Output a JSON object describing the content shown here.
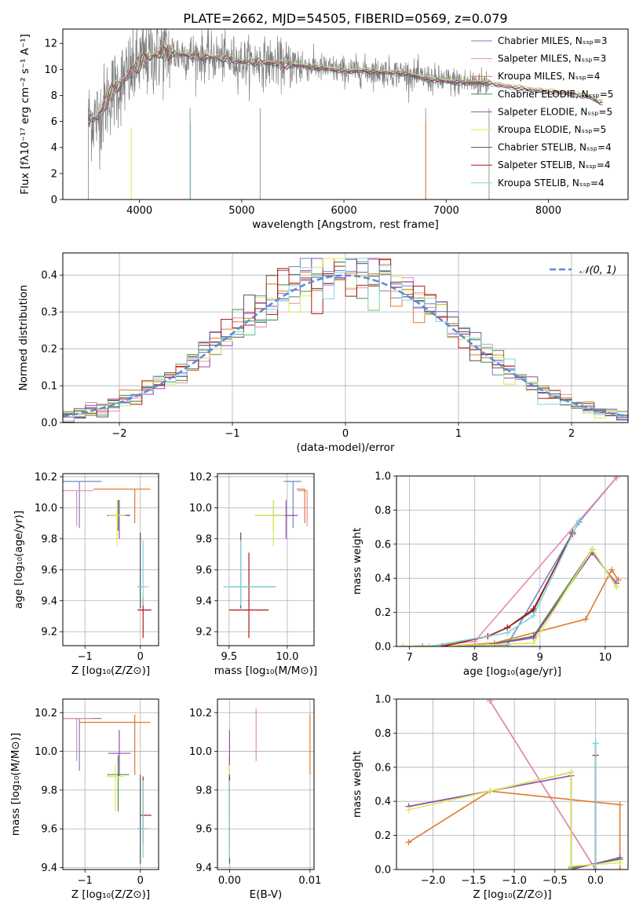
{
  "figure": {
    "title": "PLATE=2662, MJD=54505, FIBERID=0569, z=0.079"
  },
  "colors": {
    "Chabrier MILES": "#6f88c4",
    "Salpeter MILES": "#e88ab0",
    "Kroupa MILES": "#e07a2e",
    "Chabrier ELODIE": "#4c8a4c",
    "Salpeter ELODIE": "#9a48b0",
    "Kroupa ELODIE": "#d8ee52",
    "Chabrier STELIB": "#555555",
    "Salpeter STELIB": "#b01818",
    "Kroupa STELIB": "#7fd6e0",
    "data": "#808080",
    "gaussian": "#5b8bd6"
  },
  "chart_data": [
    {
      "id": "spectrum",
      "type": "line",
      "xlabel": "wavelength [Angstrom, rest frame]",
      "ylabel": "Flux [fλ10⁻¹⁷ erg cm⁻² s⁻¹ A⁻¹]",
      "xlim": [
        3250,
        8780
      ],
      "ylim": [
        0,
        13.1
      ],
      "xticks": [
        4000,
        5000,
        6000,
        7000,
        8000
      ],
      "yticks": [
        0,
        2,
        4,
        6,
        8,
        10,
        12
      ],
      "legend_position": "right",
      "legend": [
        "Chabrier MILES, Nₛₛₚ=3",
        "Salpeter MILES, Nₛₛₚ=3",
        "Kroupa MILES, Nₛₛₚ=4",
        "Chabrier ELODIE, Nₛₛₚ=5",
        "Salpeter ELODIE, Nₛₛₚ=5",
        "Kroupa ELODIE, Nₛₛₚ=5",
        "Chabrier STELIB, Nₛₛₚ=4",
        "Salpeter STELIB, Nₛₛₚ=4",
        "Kroupa STELIB, Nₛₛₚ=4"
      ],
      "continuum": [
        [
          3500,
          6.2
        ],
        [
          3600,
          6.3
        ],
        [
          3700,
          8.0
        ],
        [
          3800,
          8.8
        ],
        [
          3900,
          9.6
        ],
        [
          4000,
          10.5
        ],
        [
          4100,
          11.0
        ],
        [
          4200,
          11.3
        ],
        [
          4400,
          11.2
        ],
        [
          4600,
          11.0
        ],
        [
          4800,
          10.9
        ],
        [
          5000,
          10.6
        ],
        [
          5200,
          10.6
        ],
        [
          5400,
          10.4
        ],
        [
          5600,
          10.3
        ],
        [
          5800,
          10.1
        ],
        [
          6000,
          9.9
        ],
        [
          6200,
          9.9
        ],
        [
          6400,
          9.8
        ],
        [
          6600,
          9.7
        ],
        [
          6800,
          9.3
        ],
        [
          7000,
          9.1
        ],
        [
          7200,
          9.0
        ],
        [
          7400,
          9.0
        ],
        [
          7600,
          8.7
        ],
        [
          7800,
          8.5
        ],
        [
          8000,
          8.3
        ],
        [
          8200,
          8.2
        ],
        [
          8400,
          7.9
        ],
        [
          8500,
          7.5
        ]
      ],
      "data_range": [
        3500,
        7420
      ],
      "model_range": [
        3500,
        8530
      ]
    },
    {
      "id": "residuals",
      "type": "step",
      "xlabel": "(data-model)/error",
      "ylabel": "Normed distribution",
      "xlim": [
        -2.5,
        2.5
      ],
      "ylim": [
        0,
        0.46
      ],
      "xticks": [
        -2,
        -1,
        0,
        1,
        2
      ],
      "yticks": [
        0.0,
        0.1,
        0.2,
        0.3,
        0.4
      ],
      "legend": [
        "𝒩(0, 1)"
      ],
      "legend_position": "upper right",
      "bin_width": 0.1
    },
    {
      "id": "age-vs-Z",
      "type": "errorbar",
      "xlabel": "Z [log₁₀(Z/Z⊙)]",
      "ylabel": "age  [log₁₀(age/yr)]",
      "xlim": [
        -1.4,
        0.33
      ],
      "ylim": [
        9.11,
        10.22
      ],
      "xticks": [
        -1,
        0
      ],
      "yticks": [
        9.2,
        9.4,
        9.6,
        9.8,
        10.0,
        10.2
      ],
      "points": [
        {
          "model": "Chabrier MILES",
          "x": -1.1,
          "xerr": [
            0.4,
            0.4
          ],
          "y": 10.17,
          "yerr": [
            0.3,
            0.0
          ]
        },
        {
          "model": "Salpeter MILES",
          "x": -1.15,
          "xerr": [
            0.35,
            0.3
          ],
          "y": 10.11,
          "yerr": [
            0.23,
            0.0
          ]
        },
        {
          "model": "Kroupa MILES",
          "x": -0.1,
          "xerr": [
            0.75,
            0.28
          ],
          "y": 10.12,
          "yerr": [
            0.22,
            0.0
          ]
        },
        {
          "model": "Chabrier ELODIE",
          "x": -0.4,
          "xerr": [
            0.2,
            0.2
          ],
          "y": 9.95,
          "yerr": [
            0.1,
            0.1
          ]
        },
        {
          "model": "Salpeter ELODIE",
          "x": -0.38,
          "xerr": [
            0.2,
            0.2
          ],
          "y": 9.95,
          "yerr": [
            0.15,
            0.1
          ]
        },
        {
          "model": "Kroupa ELODIE",
          "x": -0.42,
          "xerr": [
            0.15,
            0.15
          ],
          "y": 9.95,
          "yerr": [
            0.2,
            0.1
          ]
        },
        {
          "model": "Chabrier STELIB",
          "x": 0.0,
          "xerr": [
            0.05,
            0.05
          ],
          "y": 9.49,
          "yerr": [
            0.14,
            0.35
          ]
        },
        {
          "model": "Salpeter STELIB",
          "x": 0.05,
          "xerr": [
            0.1,
            0.15
          ],
          "y": 9.34,
          "yerr": [
            0.18,
            0.08
          ]
        },
        {
          "model": "Kroupa STELIB",
          "x": 0.05,
          "xerr": [
            0.1,
            0.1
          ],
          "y": 9.49,
          "yerr": [
            0.12,
            0.3
          ]
        }
      ]
    },
    {
      "id": "age-vs-mass",
      "type": "errorbar",
      "xlabel": "mass [log₁₀(M/M⊙)]",
      "ylabel": "",
      "xlim": [
        9.4,
        10.23
      ],
      "ylim": [
        9.11,
        10.22
      ],
      "xticks": [
        9.5,
        10.0
      ],
      "yticks": [
        9.2,
        9.4,
        9.6,
        9.8,
        10.0,
        10.2
      ],
      "points": [
        {
          "model": "Chabrier MILES",
          "x": 10.05,
          "xerr": [
            0.08,
            0.07
          ],
          "y": 10.17,
          "yerr": [
            0.3,
            0.0
          ]
        },
        {
          "model": "Salpeter MILES",
          "x": 10.17,
          "xerr": [
            0.08,
            0.0
          ],
          "y": 10.11,
          "yerr": [
            0.23,
            0.0
          ]
        },
        {
          "model": "Kroupa MILES",
          "x": 10.15,
          "xerr": [
            0.07,
            0.0
          ],
          "y": 10.12,
          "yerr": [
            0.22,
            0.0
          ]
        },
        {
          "model": "Chabrier ELODIE",
          "x": 9.88,
          "xerr": [
            0.16,
            0.1
          ],
          "y": 9.95,
          "yerr": [
            0.1,
            0.1
          ]
        },
        {
          "model": "Salpeter ELODIE",
          "x": 9.99,
          "xerr": [
            0.12,
            0.1
          ],
          "y": 9.95,
          "yerr": [
            0.15,
            0.1
          ]
        },
        {
          "model": "Kroupa ELODIE",
          "x": 9.88,
          "xerr": [
            0.16,
            0.1
          ],
          "y": 9.95,
          "yerr": [
            0.2,
            0.1
          ]
        },
        {
          "model": "Chabrier STELIB",
          "x": 9.6,
          "xerr": [
            0.1,
            0.3
          ],
          "y": 9.49,
          "yerr": [
            0.14,
            0.35
          ]
        },
        {
          "model": "Salpeter STELIB",
          "x": 9.67,
          "xerr": [
            0.17,
            0.17
          ],
          "y": 9.34,
          "yerr": [
            0.18,
            0.37
          ]
        },
        {
          "model": "Kroupa STELIB",
          "x": 9.6,
          "xerr": [
            0.15,
            0.3
          ],
          "y": 9.49,
          "yerr": [
            0.12,
            0.3
          ]
        }
      ]
    },
    {
      "id": "weight-vs-age",
      "type": "line",
      "xlabel": "age  [log₁₀(age/yr)]",
      "ylabel": "mass weight",
      "xlim": [
        6.8,
        10.35
      ],
      "ylim": [
        0,
        1
      ],
      "xticks": [
        7,
        8,
        9,
        10
      ],
      "yticks": [
        0.0,
        0.2,
        0.4,
        0.6,
        0.8,
        1.0
      ],
      "series": [
        {
          "model": "Chabrier MILES",
          "x": [
            7.2,
            8.5,
            9.6,
            10.17
          ],
          "y": [
            0.0,
            0.01,
            0.73,
            0.99
          ]
        },
        {
          "model": "Salpeter MILES",
          "x": [
            7.3,
            8.0,
            10.17
          ],
          "y": [
            0.0,
            0.03,
            0.99
          ]
        },
        {
          "model": "Kroupa MILES",
          "x": [
            7.5,
            8.3,
            9.7,
            10.1,
            10.2
          ],
          "y": [
            0.0,
            0.02,
            0.16,
            0.45,
            0.39
          ]
        },
        {
          "model": "Chabrier ELODIE",
          "x": [
            6.9,
            8.2,
            8.9,
            9.8,
            10.17
          ],
          "y": [
            0.0,
            0.01,
            0.06,
            0.57,
            0.35
          ]
        },
        {
          "model": "Salpeter ELODIE",
          "x": [
            6.9,
            8.2,
            8.9,
            9.8,
            10.17
          ],
          "y": [
            0.0,
            0.01,
            0.05,
            0.55,
            0.37
          ]
        },
        {
          "model": "Kroupa ELODIE",
          "x": [
            6.9,
            8.2,
            8.9,
            9.8,
            10.17
          ],
          "y": [
            0.0,
            0.01,
            0.02,
            0.57,
            0.35
          ]
        },
        {
          "model": "Chabrier STELIB",
          "x": [
            7.5,
            8.2,
            8.5,
            8.9,
            9.5
          ],
          "y": [
            0.0,
            0.06,
            0.11,
            0.21,
            0.67
          ]
        },
        {
          "model": "Salpeter STELIB",
          "x": [
            7.5,
            8.2,
            8.5,
            8.9,
            9.5
          ],
          "y": [
            0.0,
            0.06,
            0.11,
            0.22,
            0.66
          ]
        },
        {
          "model": "Kroupa STELIB",
          "x": [
            7.3,
            8.5,
            8.9,
            9.6
          ],
          "y": [
            0.0,
            0.08,
            0.18,
            0.74
          ]
        }
      ]
    },
    {
      "id": "mass-vs-Z",
      "type": "errorbar",
      "xlabel": "Z [log₁₀(Z/Z⊙)]",
      "ylabel": "mass [log₁₀(M/M⊙)]",
      "xlim": [
        -1.4,
        0.33
      ],
      "ylim": [
        9.39,
        10.27
      ],
      "xticks": [
        -1,
        0
      ],
      "yticks": [
        9.4,
        9.6,
        9.8,
        10.0,
        10.2
      ],
      "points": [
        {
          "model": "Chabrier MILES",
          "x": -1.1,
          "xerr": [
            0.4,
            0.4
          ],
          "y": 10.17,
          "yerr": [
            0.27,
            0.0
          ]
        },
        {
          "model": "Salpeter MILES",
          "x": -1.15,
          "xerr": [
            0.35,
            0.3
          ],
          "y": 10.17,
          "yerr": [
            0.22,
            0.0
          ]
        },
        {
          "model": "Kroupa MILES",
          "x": -0.1,
          "xerr": [
            1.0,
            0.28
          ],
          "y": 10.15,
          "yerr": [
            0.27,
            0.04
          ]
        },
        {
          "model": "Chabrier ELODIE",
          "x": -0.4,
          "xerr": [
            0.2,
            0.2
          ],
          "y": 9.88,
          "yerr": [
            0.19,
            0.1
          ]
        },
        {
          "model": "Salpeter ELODIE",
          "x": -0.38,
          "xerr": [
            0.2,
            0.2
          ],
          "y": 9.99,
          "yerr": [
            0.12,
            0.12
          ]
        },
        {
          "model": "Kroupa ELODIE",
          "x": -0.45,
          "xerr": [
            0.15,
            0.15
          ],
          "y": 9.87,
          "yerr": [
            0.18,
            0.06
          ]
        },
        {
          "model": "Chabrier STELIB",
          "x": 0.0,
          "xerr": [
            0.05,
            0.1
          ],
          "y": 9.6,
          "yerr": [
            0.18,
            0.28
          ]
        },
        {
          "model": "Salpeter STELIB",
          "x": 0.05,
          "xerr": [
            0.05,
            0.15
          ],
          "y": 9.67,
          "yerr": [
            0.15,
            0.2
          ]
        },
        {
          "model": "Kroupa STELIB",
          "x": 0.05,
          "xerr": [
            0.1,
            0.1
          ],
          "y": 9.6,
          "yerr": [
            0.15,
            0.25
          ]
        }
      ]
    },
    {
      "id": "mass-vs-ebv",
      "type": "errorbar",
      "xlabel": "E(B-V)",
      "ylabel": "",
      "xlim": [
        -0.0015,
        0.0105
      ],
      "ylim": [
        9.39,
        10.27
      ],
      "xticks": [
        0.0,
        0.01
      ],
      "xticklabels": [
        "0.00",
        "0.01"
      ],
      "yticks": [
        9.4,
        9.6,
        9.8,
        10.0,
        10.2
      ],
      "points": [
        {
          "model": "Chabrier MILES",
          "x": 0.0,
          "xerr": [
            0,
            0
          ],
          "y": 10.17,
          "yerr": [
            0.0,
            0.0
          ]
        },
        {
          "model": "Salpeter MILES",
          "x": 0.0033,
          "xerr": [
            0,
            0
          ],
          "y": 10.17,
          "yerr": [
            0.22,
            0.05
          ]
        },
        {
          "model": "Kroupa MILES",
          "x": 0.01,
          "xerr": [
            0,
            0
          ],
          "y": 10.15,
          "yerr": [
            0.27,
            0.04
          ]
        },
        {
          "model": "Chabrier ELODIE",
          "x": 0.0,
          "xerr": [
            0,
            0
          ],
          "y": 9.88,
          "yerr": [
            0.19,
            0.1
          ]
        },
        {
          "model": "Salpeter ELODIE",
          "x": 0.0,
          "xerr": [
            0,
            0
          ],
          "y": 9.99,
          "yerr": [
            0.12,
            0.12
          ]
        },
        {
          "model": "Kroupa ELODIE",
          "x": 0.0,
          "xerr": [
            0,
            0
          ],
          "y": 9.87,
          "yerr": [
            0.18,
            0.06
          ]
        },
        {
          "model": "Chabrier STELIB",
          "x": 0.0,
          "xerr": [
            0,
            0
          ],
          "y": 9.6,
          "yerr": [
            0.18,
            0.28
          ]
        },
        {
          "model": "Salpeter STELIB",
          "x": 0.0,
          "xerr": [
            0,
            0
          ],
          "y": 9.67,
          "yerr": [
            0.15,
            0.2
          ]
        },
        {
          "model": "Kroupa STELIB",
          "x": 0.0,
          "xerr": [
            0,
            0
          ],
          "y": 9.6,
          "yerr": [
            0.15,
            0.25
          ]
        }
      ]
    },
    {
      "id": "weight-vs-Z",
      "type": "line",
      "xlabel": "Z [log₁₀(Z/Z⊙)]",
      "ylabel": "mass weight",
      "xlim": [
        -2.45,
        0.4
      ],
      "ylim": [
        0,
        1
      ],
      "xticks": [
        -2.0,
        -1.5,
        -1.0,
        -0.5,
        0.0
      ],
      "xticklabels": [
        "−2.0",
        "−1.5",
        "−1.0",
        "−0.5",
        "0.0"
      ],
      "yticks": [
        0.0,
        0.2,
        0.4,
        0.6,
        0.8,
        1.0
      ],
      "series": [
        {
          "model": "Chabrier MILES",
          "x": [
            -1.3,
            0.0
          ],
          "y": [
            0.99,
            0.0
          ]
        },
        {
          "model": "Salpeter MILES",
          "x": [
            -1.3,
            0.0
          ],
          "y": [
            0.99,
            0.0
          ]
        },
        {
          "model": "Kroupa MILES",
          "x": [
            -2.3,
            -1.3,
            0.3,
            0.3
          ],
          "y": [
            0.16,
            0.46,
            0.38,
            0.0
          ]
        },
        {
          "model": "Chabrier ELODIE",
          "x": [
            -2.3,
            -1.3,
            -0.3,
            -0.3,
            0.3
          ],
          "y": [
            0.37,
            0.46,
            0.57,
            0.01,
            0.06
          ]
        },
        {
          "model": "Salpeter ELODIE",
          "x": [
            -2.3,
            -0.3,
            -0.3,
            0.3
          ],
          "y": [
            0.37,
            0.55,
            0.0,
            0.07
          ]
        },
        {
          "model": "Kroupa ELODIE",
          "x": [
            -2.3,
            -1.3,
            -0.3,
            -0.3,
            0.3
          ],
          "y": [
            0.35,
            0.46,
            0.57,
            0.02,
            0.04
          ]
        },
        {
          "model": "Chabrier STELIB",
          "x": [
            0.0,
            0.0
          ],
          "y": [
            0.74,
            0.0
          ]
        },
        {
          "model": "Salpeter STELIB",
          "x": [
            0.0,
            0.0
          ],
          "y": [
            0.67,
            0.0
          ]
        },
        {
          "model": "Kroupa STELIB",
          "x": [
            0.0,
            0.0
          ],
          "y": [
            0.74,
            0.0
          ]
        }
      ]
    }
  ]
}
